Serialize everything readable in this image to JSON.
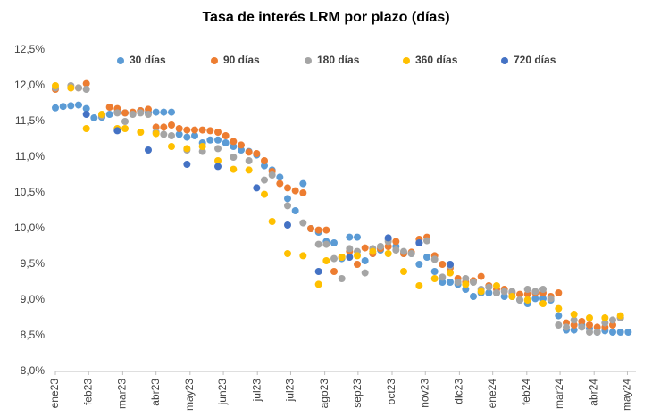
{
  "chart_data": {
    "type": "scatter",
    "title": "Tasa de interés LRM por plazo (días)",
    "xlim": [
      0,
      75
    ],
    "ylim": [
      8,
      12.5
    ],
    "xticks": [
      {
        "value": 0,
        "label": "ene23"
      },
      {
        "value": 4.3,
        "label": "feb23"
      },
      {
        "value": 8.7,
        "label": "mar23"
      },
      {
        "value": 13,
        "label": "abr23"
      },
      {
        "value": 17.4,
        "label": "may23"
      },
      {
        "value": 21.7,
        "label": "jun23"
      },
      {
        "value": 26.1,
        "label": "jul23"
      },
      {
        "value": 30.4,
        "label": "jul23"
      },
      {
        "value": 34.8,
        "label": "ago23"
      },
      {
        "value": 39.1,
        "label": "sep23"
      },
      {
        "value": 43.5,
        "label": "oct23"
      },
      {
        "value": 47.8,
        "label": "nov23"
      },
      {
        "value": 52.2,
        "label": "dic23"
      },
      {
        "value": 56.5,
        "label": "ene24"
      },
      {
        "value": 60.9,
        "label": "feb24"
      },
      {
        "value": 65.2,
        "label": "mar24"
      },
      {
        "value": 69.6,
        "label": "abr24"
      },
      {
        "value": 73.9,
        "label": "may24"
      }
    ],
    "yticks": [
      {
        "value": 8,
        "label": "8,0%"
      },
      {
        "value": 8.5,
        "label": "8,5%"
      },
      {
        "value": 9,
        "label": "9,0%"
      },
      {
        "value": 9.5,
        "label": "9,5%"
      },
      {
        "value": 10,
        "label": "10,0%"
      },
      {
        "value": 10.5,
        "label": "10,5%"
      },
      {
        "value": 11,
        "label": "11,0%"
      },
      {
        "value": 11.5,
        "label": "11,5%"
      },
      {
        "value": 12,
        "label": "12,0%"
      },
      {
        "value": 12.5,
        "label": "12,5%"
      }
    ],
    "grid": false,
    "legend": "top",
    "series": [
      {
        "name": "30 días",
        "color": "#5b9bd5",
        "x": [
          0,
          1,
          2,
          3,
          4,
          5,
          6,
          7,
          8,
          9,
          10,
          11,
          12,
          13,
          14,
          15,
          16,
          17,
          18,
          19,
          20,
          21,
          22,
          23,
          24,
          25,
          26,
          27,
          28,
          29,
          30,
          31,
          32,
          33,
          34,
          35,
          36,
          37,
          38,
          39,
          40,
          41,
          42,
          43,
          44,
          45,
          46,
          47,
          48,
          49,
          50,
          51,
          52,
          53,
          54,
          55,
          56,
          57,
          58,
          59,
          60,
          61,
          62,
          63,
          64,
          65,
          66,
          67,
          68,
          69,
          70,
          71,
          72,
          73,
          74
        ],
        "values": [
          11.69,
          11.71,
          11.72,
          11.73,
          11.68,
          11.55,
          11.56,
          11.6,
          11.63,
          11.62,
          11.62,
          11.65,
          11.63,
          11.63,
          11.63,
          11.63,
          11.32,
          11.28,
          11.3,
          11.2,
          11.24,
          11.24,
          11.2,
          11.15,
          11.1,
          11.08,
          11.03,
          10.88,
          10.82,
          10.72,
          10.42,
          10.25,
          10.63,
          10.0,
          9.95,
          9.82,
          9.8,
          9.58,
          9.88,
          9.88,
          9.55,
          9.65,
          9.7,
          9.85,
          9.75,
          9.65,
          9.65,
          9.5,
          9.6,
          9.4,
          9.25,
          9.25,
          9.22,
          9.15,
          9.05,
          9.1,
          9.1,
          9.1,
          9.05,
          9.05,
          9.0,
          8.95,
          9.02,
          9.02,
          9.0,
          8.78,
          8.58,
          8.58,
          8.65,
          8.6,
          8.55,
          8.57,
          8.55,
          8.55,
          8.55
        ]
      },
      {
        "name": "90 días",
        "color": "#ed7d31",
        "x": [
          0,
          2,
          3,
          4,
          6,
          7,
          8,
          9,
          10,
          11,
          12,
          13,
          14,
          15,
          16,
          17,
          18,
          19,
          20,
          21,
          22,
          23,
          24,
          25,
          26,
          27,
          28,
          29,
          30,
          31,
          32,
          33,
          34,
          35,
          36,
          37,
          38,
          39,
          40,
          41,
          42,
          43,
          44,
          45,
          46,
          47,
          48,
          49,
          50,
          51,
          52,
          53,
          54,
          55,
          56,
          57,
          58,
          59,
          60,
          61,
          62,
          63,
          64,
          65,
          66,
          67,
          68,
          69,
          70,
          71,
          72,
          73
        ],
        "values": [
          11.95,
          11.97,
          11.97,
          12.03,
          11.58,
          11.7,
          11.68,
          11.62,
          11.63,
          11.65,
          11.67,
          11.42,
          11.42,
          11.45,
          11.4,
          11.38,
          11.38,
          11.38,
          11.37,
          11.35,
          11.3,
          11.22,
          11.17,
          11.07,
          11.05,
          10.95,
          10.8,
          10.63,
          10.57,
          10.53,
          10.5,
          10.0,
          9.98,
          9.98,
          9.4,
          9.6,
          9.68,
          9.5,
          9.73,
          9.65,
          9.72,
          9.75,
          9.82,
          9.65,
          9.67,
          9.85,
          9.88,
          9.62,
          9.5,
          9.45,
          9.3,
          9.25,
          9.27,
          9.33,
          9.2,
          9.15,
          9.15,
          9.1,
          9.08,
          9.08,
          9.1,
          9.1,
          9.05,
          9.1,
          8.68,
          8.65,
          8.7,
          8.65,
          8.62,
          8.62,
          8.65,
          8.75
        ]
      },
      {
        "name": "180 días",
        "color": "#a5a5a5",
        "x": [
          0,
          2,
          3,
          4,
          6,
          8,
          9,
          10,
          11,
          12,
          13,
          14,
          15,
          17,
          19,
          21,
          23,
          25,
          27,
          28,
          30,
          32,
          34,
          35,
          36,
          37,
          38,
          39,
          40,
          41,
          42,
          43,
          44,
          45,
          46,
          47,
          48,
          49,
          50,
          51,
          52,
          53,
          54,
          55,
          56,
          57,
          58,
          59,
          60,
          61,
          62,
          63,
          64,
          65,
          66,
          67,
          68,
          69,
          70,
          71,
          72,
          73
        ],
        "values": [
          11.97,
          12.0,
          11.97,
          11.95,
          11.58,
          11.62,
          11.5,
          11.6,
          11.62,
          11.6,
          11.35,
          11.32,
          11.3,
          11.1,
          11.08,
          11.12,
          11.0,
          10.95,
          10.68,
          10.75,
          10.32,
          10.08,
          9.78,
          9.78,
          9.58,
          9.3,
          9.72,
          9.68,
          9.38,
          9.72,
          9.75,
          9.82,
          9.7,
          9.68,
          9.65,
          9.8,
          9.83,
          9.57,
          9.32,
          9.48,
          9.25,
          9.3,
          9.25,
          9.15,
          9.18,
          9.1,
          9.12,
          9.12,
          9.0,
          9.15,
          9.12,
          9.15,
          9.02,
          8.65,
          8.62,
          8.72,
          8.62,
          8.55,
          8.55,
          8.68,
          8.72,
          8.75
        ]
      },
      {
        "name": "360 días",
        "color": "#ffc000",
        "x": [
          0,
          2,
          4,
          6,
          8,
          9,
          11,
          13,
          15,
          17,
          19,
          21,
          23,
          25,
          27,
          28,
          30,
          32,
          34,
          35,
          37,
          39,
          41,
          43,
          45,
          47,
          49,
          51,
          53,
          55,
          57,
          59,
          61,
          63,
          65,
          67,
          69,
          71,
          73
        ],
        "values": [
          12.0,
          11.97,
          11.4,
          11.6,
          11.4,
          11.4,
          11.35,
          11.33,
          11.15,
          11.12,
          11.15,
          10.95,
          10.83,
          10.82,
          10.48,
          10.1,
          9.65,
          9.62,
          9.22,
          9.55,
          9.6,
          9.62,
          9.68,
          9.65,
          9.4,
          9.2,
          9.3,
          9.38,
          9.22,
          9.12,
          9.2,
          9.05,
          9.0,
          8.95,
          8.88,
          8.8,
          8.75,
          8.75,
          8.78
        ]
      },
      {
        "name": "720 días",
        "color": "#4472c4",
        "x": [
          4,
          8,
          12,
          17,
          21,
          26,
          30,
          34,
          38,
          43,
          47,
          51
        ],
        "values": [
          11.6,
          11.37,
          11.1,
          10.9,
          10.87,
          10.57,
          10.05,
          9.4,
          9.6,
          9.87,
          9.8,
          9.5
        ]
      }
    ]
  }
}
